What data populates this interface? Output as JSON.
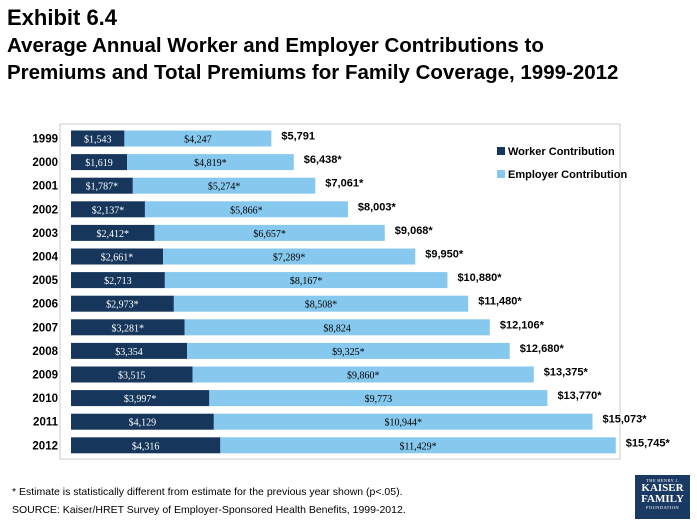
{
  "title": {
    "exhibit": "Exhibit 6.4",
    "line1": "Average Annual Worker and Employer Contributions to",
    "line2": "Premiums and Total Premiums for Family Coverage, 1999-2012"
  },
  "footnotes": {
    "note": "* Estimate is statistically different from estimate for the previous year shown (p<.05).",
    "source": "SOURCE:  Kaiser/HRET Survey of Employer-Sponsored Health Benefits, 1999-2012."
  },
  "logo": {
    "line1": "THE HENRY J.",
    "line2": "KAISER",
    "line3": "FAMILY",
    "line4": "FOUNDATION"
  },
  "colors": {
    "worker": "#16365c",
    "employer": "#87c8ee",
    "background": "#ffffff",
    "text": "#000000"
  },
  "chart_data": {
    "type": "bar",
    "orientation": "horizontal",
    "stacked": true,
    "legend_position": "right",
    "categories": [
      "1999",
      "2000",
      "2001",
      "2002",
      "2003",
      "2004",
      "2005",
      "2006",
      "2007",
      "2008",
      "2009",
      "2010",
      "2011",
      "2012"
    ],
    "series": [
      {
        "name": "Worker Contribution",
        "values": [
          1543,
          1619,
          1787,
          2137,
          2412,
          2661,
          2713,
          2973,
          3281,
          3354,
          3515,
          3997,
          4129,
          4316
        ],
        "labels": [
          "$1,543",
          "$1,619",
          "$1,787*",
          "$2,137*",
          "$2,412*",
          "$2,661*",
          "$2,713",
          "$2,973*",
          "$3,281*",
          "$3,354",
          "$3,515",
          "$3,997*",
          "$4,129",
          "$4,316"
        ]
      },
      {
        "name": "Employer Contribution",
        "values": [
          4247,
          4819,
          5274,
          5866,
          6657,
          7289,
          8167,
          8508,
          8824,
          9325,
          9860,
          9773,
          10944,
          11429
        ],
        "labels": [
          "$4,247",
          "$4,819*",
          "$5,274*",
          "$5,866*",
          "$6,657*",
          "$7,289*",
          "$8,167*",
          "$8,508*",
          "$8,824",
          "$9,325*",
          "$9,860*",
          "$9,773",
          "$10,944*",
          "$11,429*"
        ]
      }
    ],
    "totals": {
      "values": [
        5791,
        6438,
        7061,
        8003,
        9068,
        9950,
        10880,
        11480,
        12106,
        12680,
        13375,
        13770,
        15073,
        15745
      ],
      "labels": [
        "$5,791",
        "$6,438*",
        "$7,061*",
        "$8,003*",
        "$9,068*",
        "$9,950*",
        "$10,880*",
        "$11,480*",
        "$12,106*",
        "$12,680*",
        "$13,375*",
        "$13,770*",
        "$15,073*",
        "$15,745*"
      ]
    }
  }
}
